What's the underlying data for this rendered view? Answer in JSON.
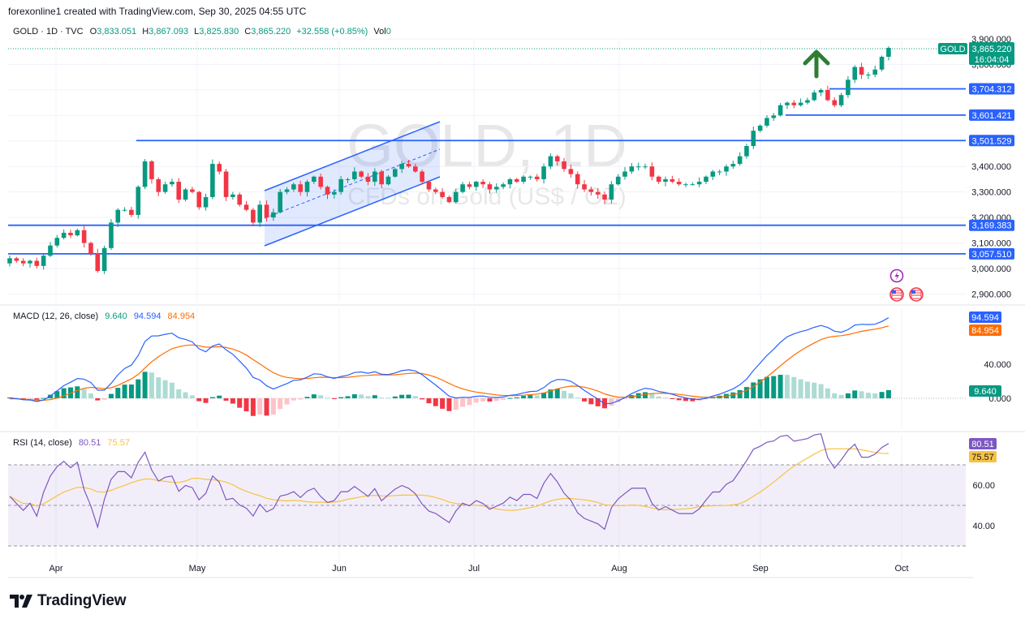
{
  "header": {
    "attribution": "forexonline1 created with TradingView.com, Sep 30, 2025 04:55 UTC"
  },
  "legend": {
    "symbol": "GOLD · 1D · TVC",
    "o_label": "O",
    "o": "3,833.051",
    "h_label": "H",
    "h": "3,867.093",
    "l_label": "L",
    "l": "3,825.830",
    "c_label": "C",
    "c": "3,865.220",
    "change": "+32.558 (+0.85%)",
    "vol_label": "Vol",
    "vol": "0"
  },
  "watermark": {
    "line1": "GOLD, 1D",
    "line2": "CFDs on Gold (US$ / OZ)"
  },
  "price_tag": {
    "symbol": "GOLD",
    "price": "3,865.220",
    "countdown": "16:04:04"
  },
  "macd": {
    "label": "MACD (12, 26, close)",
    "hist": "9.640",
    "macd": "94.594",
    "signal": "84.954"
  },
  "rsi": {
    "label": "RSI (14, close)",
    "rsi": "80.51",
    "ma": "75.57"
  },
  "footer": {
    "brand": "TradingView"
  },
  "colors": {
    "up": "#089981",
    "down": "#f23645",
    "level": "#2962ff",
    "macd": "#2962ff",
    "signal": "#ff6d00",
    "rsi": "#7e57c2",
    "rsi_ma": "#f7c243",
    "arrow": "#2e7d32"
  },
  "chart_data": [
    {
      "type": "candlestick",
      "title": "GOLD, 1D",
      "x_labels": [
        "Apr",
        "May",
        "Jun",
        "Jul",
        "Aug",
        "Sep",
        "Oct"
      ],
      "y_ticks": [
        "3,900.000",
        "3,800.000",
        "3,700.000",
        "3,600.000",
        "3,500.000",
        "3,400.000",
        "3,300.000",
        "3,200.000",
        "3,100.000",
        "3,000.000",
        "2,900.000"
      ],
      "y_tick_values": [
        3900,
        3800,
        3700,
        3600,
        3500,
        3400,
        3300,
        3200,
        3100,
        3000,
        2900
      ],
      "ylim": [
        2860,
        3930
      ],
      "closes": [
        3040,
        3030,
        3020,
        3030,
        3010,
        3050,
        3090,
        3120,
        3140,
        3130,
        3150,
        3100,
        3060,
        2990,
        3080,
        3180,
        3230,
        3230,
        3210,
        3320,
        3420,
        3350,
        3300,
        3330,
        3340,
        3270,
        3310,
        3300,
        3240,
        3280,
        3410,
        3380,
        3280,
        3290,
        3250,
        3230,
        3180,
        3250,
        3200,
        3220,
        3300,
        3310,
        3330,
        3300,
        3340,
        3360,
        3320,
        3290,
        3300,
        3350,
        3350,
        3380,
        3360,
        3340,
        3380,
        3330,
        3360,
        3390,
        3410,
        3400,
        3380,
        3340,
        3310,
        3300,
        3280,
        3260,
        3300,
        3330,
        3320,
        3340,
        3330,
        3310,
        3320,
        3330,
        3350,
        3340,
        3360,
        3360,
        3350,
        3400,
        3440,
        3420,
        3390,
        3370,
        3330,
        3310,
        3300,
        3290,
        3270,
        3330,
        3360,
        3380,
        3400,
        3400,
        3400,
        3360,
        3340,
        3350,
        3340,
        3330,
        3330,
        3330,
        3340,
        3360,
        3380,
        3380,
        3400,
        3410,
        3440,
        3480,
        3540,
        3560,
        3590,
        3600,
        3640,
        3650,
        3640,
        3650,
        3660,
        3690,
        3700,
        3660,
        3640,
        3680,
        3740,
        3790,
        3760,
        3760,
        3780,
        3830,
        3865
      ],
      "levels": [
        3704.312,
        3601.421,
        3501.529,
        3169.383,
        3057.51
      ],
      "level_labels": [
        "3,704.312",
        "3,601.421",
        "3,501.529",
        "3,169.383",
        "3,057.510"
      ]
    },
    {
      "type": "macd",
      "title": "MACD (12, 26, close)",
      "y_ticks": [
        "40.000",
        "0.000"
      ],
      "y_tick_values": [
        40,
        0
      ],
      "ylim": [
        -30,
        130
      ],
      "latest": {
        "histogram": 9.64,
        "macd": 94.594,
        "signal": 84.954
      }
    },
    {
      "type": "line",
      "title": "RSI (14, close)",
      "y_ticks": [
        "60.00",
        "40.00"
      ],
      "y_tick_values": [
        60,
        40
      ],
      "ylim": [
        25,
        87
      ],
      "band": [
        30,
        70
      ],
      "latest": {
        "rsi": 80.51,
        "ma": 75.57
      }
    }
  ]
}
